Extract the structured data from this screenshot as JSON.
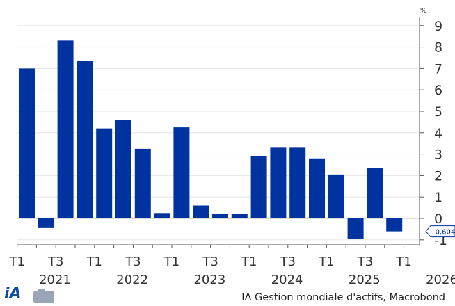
{
  "chart_data": {
    "type": "bar",
    "title": "",
    "unit_label": "%",
    "categories": [
      "T1 2021",
      "T2 2021",
      "T3 2021",
      "T4 2021",
      "T1 2022",
      "T2 2022",
      "T3 2022",
      "T4 2022",
      "T1 2023",
      "T2 2023",
      "T3 2023",
      "T4 2023",
      "T1 2024",
      "T2 2024",
      "T3 2024",
      "T4 2024",
      "T1 2025",
      "T2 2025",
      "T3 2025",
      "T4 2025"
    ],
    "values": [
      7.0,
      -0.45,
      8.3,
      7.35,
      4.2,
      4.6,
      3.25,
      0.25,
      4.25,
      0.6,
      0.2,
      0.2,
      2.9,
      3.3,
      3.3,
      2.8,
      2.05,
      -0.95,
      2.35,
      -0.604
    ],
    "ylim": [
      -1.2,
      9.2
    ],
    "yticks": [
      -1,
      0,
      1,
      2,
      3,
      4,
      5,
      6,
      7,
      8,
      9
    ],
    "y_axis_position": "right",
    "grid": true,
    "bar_color": "#0033a0",
    "x_tick_labels": [
      "T1",
      "T3",
      "T1",
      "T3",
      "T1",
      "T3",
      "T1",
      "T3",
      "T1",
      "T3",
      "T1"
    ],
    "year_labels": [
      "2021",
      "2022",
      "2023",
      "2024",
      "2025",
      "2026"
    ],
    "last_value_callout": "-0,604"
  },
  "footer": {
    "source": "IA Gestion mondiale d'actifs, Macrobond",
    "logo_text": "iA"
  }
}
